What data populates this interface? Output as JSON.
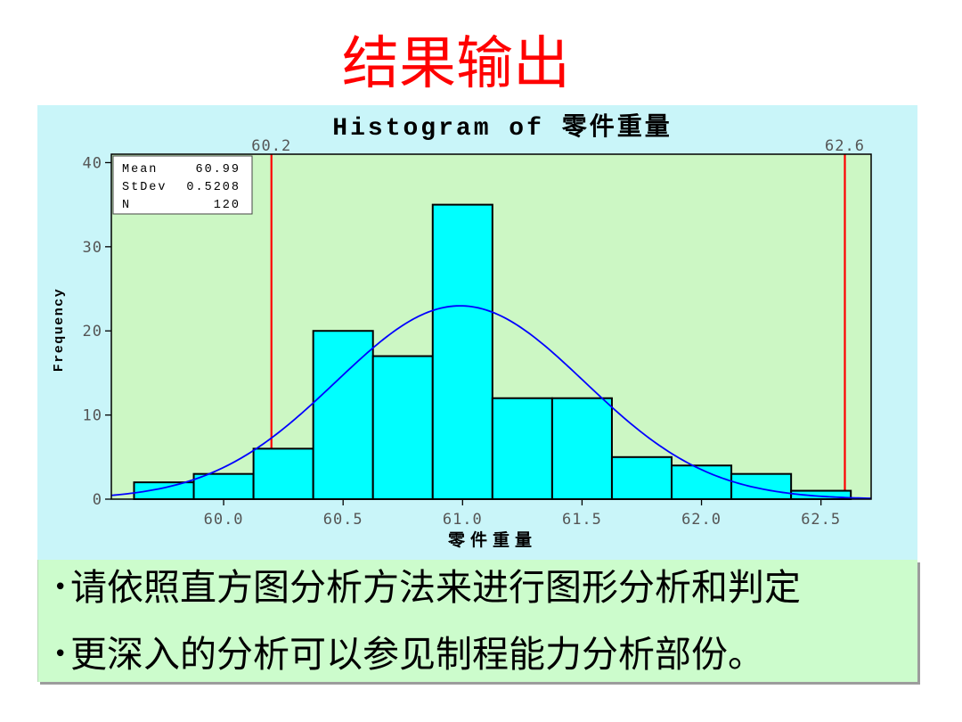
{
  "slide": {
    "title": "结果输出",
    "title_color": "#ff0000",
    "bullets": [
      "请依照直方图分析方法来进行图形分析和判定",
      "更深入的分析可以参见制程能力分析部份。"
    ],
    "bullet_box_background": "#ccfccc"
  },
  "chart_data": {
    "type": "bar",
    "title": "Histogram of 零件重量",
    "xlabel": "零件重量",
    "ylabel": "Frequency",
    "x": [
      59.75,
      60.0,
      60.25,
      60.5,
      60.75,
      61.0,
      61.25,
      61.5,
      61.75,
      62.0,
      62.25,
      62.5
    ],
    "values": [
      2,
      3,
      6,
      20,
      17,
      35,
      12,
      12,
      5,
      4,
      3,
      1
    ],
    "bin_width": 0.25,
    "xlim": [
      59.53,
      62.71
    ],
    "ylim": [
      0,
      41
    ],
    "x_tick_labels": [
      "60.0",
      "60.5",
      "61.0",
      "61.5",
      "62.0",
      "62.5"
    ],
    "y_tick_labels": [
      "0",
      "10",
      "20",
      "30",
      "40"
    ],
    "reference_lines": [
      {
        "x": 60.2,
        "label": "60.2"
      },
      {
        "x": 62.6,
        "label": "62.6"
      }
    ],
    "stats": {
      "mean": {
        "label": "Mean",
        "value": "60.99"
      },
      "stdev": {
        "label": "StDev",
        "value": "0.5208"
      },
      "n": {
        "label": "N",
        "value": "120"
      }
    },
    "fit_curve": {
      "type": "normal",
      "color": "#0000ff"
    },
    "grid": false,
    "colors": {
      "bars": "#00ffff",
      "bar_outline": "#000000",
      "reference_lines": "#ff0000",
      "plot_background": "#ccf7c4",
      "figure_background": "#c9f5f9"
    }
  }
}
